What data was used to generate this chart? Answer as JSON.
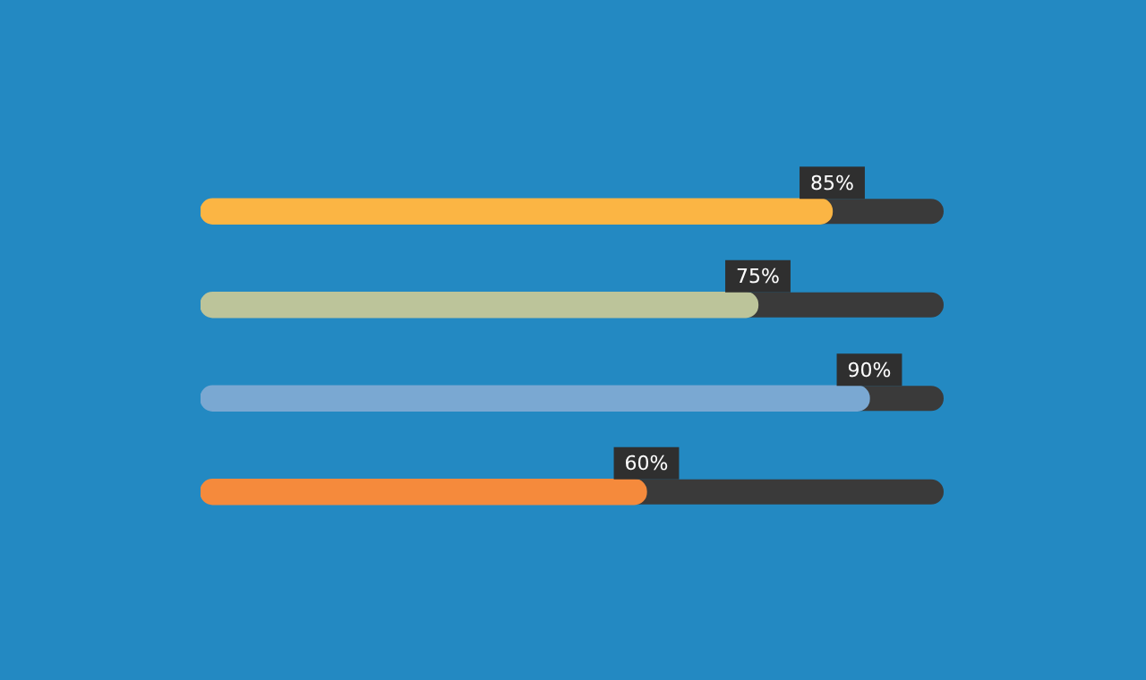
{
  "chart_data": {
    "type": "bar",
    "orientation": "horizontal",
    "categories": [
      null,
      null,
      null,
      null
    ],
    "values": [
      85,
      75,
      90,
      60
    ],
    "colors": [
      "#fbb544",
      "#bcc49a",
      "#7aa8d2",
      "#f58a3c"
    ],
    "value_labels": [
      "85%",
      "75%",
      "90%",
      "60%"
    ],
    "xlim": [
      0,
      100
    ],
    "tick_labels": false
  }
}
